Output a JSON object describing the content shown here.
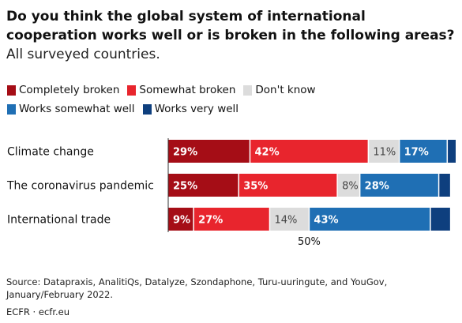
{
  "title_bold": "Do you think the global system of international cooperation works well or is broken in the following areas?",
  "title_light": "All surveyed countries.",
  "source": "Source: Datapraxis, AnalitiQs, Datalyze, Szondaphone, Turu-uuringute, and YouGov, January/February 2022.",
  "credit": "ECFR · ecfr.eu",
  "chart_data": {
    "type": "bar",
    "orientation": "horizontal",
    "stacked": true,
    "categories": [
      "Climate change",
      "The coronavirus pandemic",
      "International trade"
    ],
    "series": [
      {
        "name": "Completely broken",
        "color": "#a50d16",
        "label_color": "#ffffff",
        "values": [
          29,
          25,
          9
        ]
      },
      {
        "name": "Somewhat broken",
        "color": "#e8252d",
        "label_color": "#ffffff",
        "values": [
          42,
          35,
          27
        ]
      },
      {
        "name": "Don't know",
        "color": "#dcdcdc",
        "label_color": "#444444",
        "values": [
          11,
          8,
          14
        ]
      },
      {
        "name": "Works somewhat well",
        "color": "#1f6fb4",
        "label_color": "#ffffff",
        "values": [
          17,
          28,
          43
        ]
      },
      {
        "name": "Works very well",
        "color": "#0e3f7e",
        "label_color": "#ffffff",
        "values": [
          3,
          4,
          7
        ]
      }
    ],
    "data_labels": [
      [
        "29%",
        "42%",
        "11%",
        "17%",
        ""
      ],
      [
        "25%",
        "35%",
        "8%",
        "28%",
        ""
      ],
      [
        "9%",
        "27%",
        "14%",
        "43%",
        ""
      ]
    ],
    "xlim": [
      0,
      102
    ],
    "reference_line": {
      "value": 50,
      "label": "50%"
    },
    "legend_position": "top",
    "grid": false
  }
}
